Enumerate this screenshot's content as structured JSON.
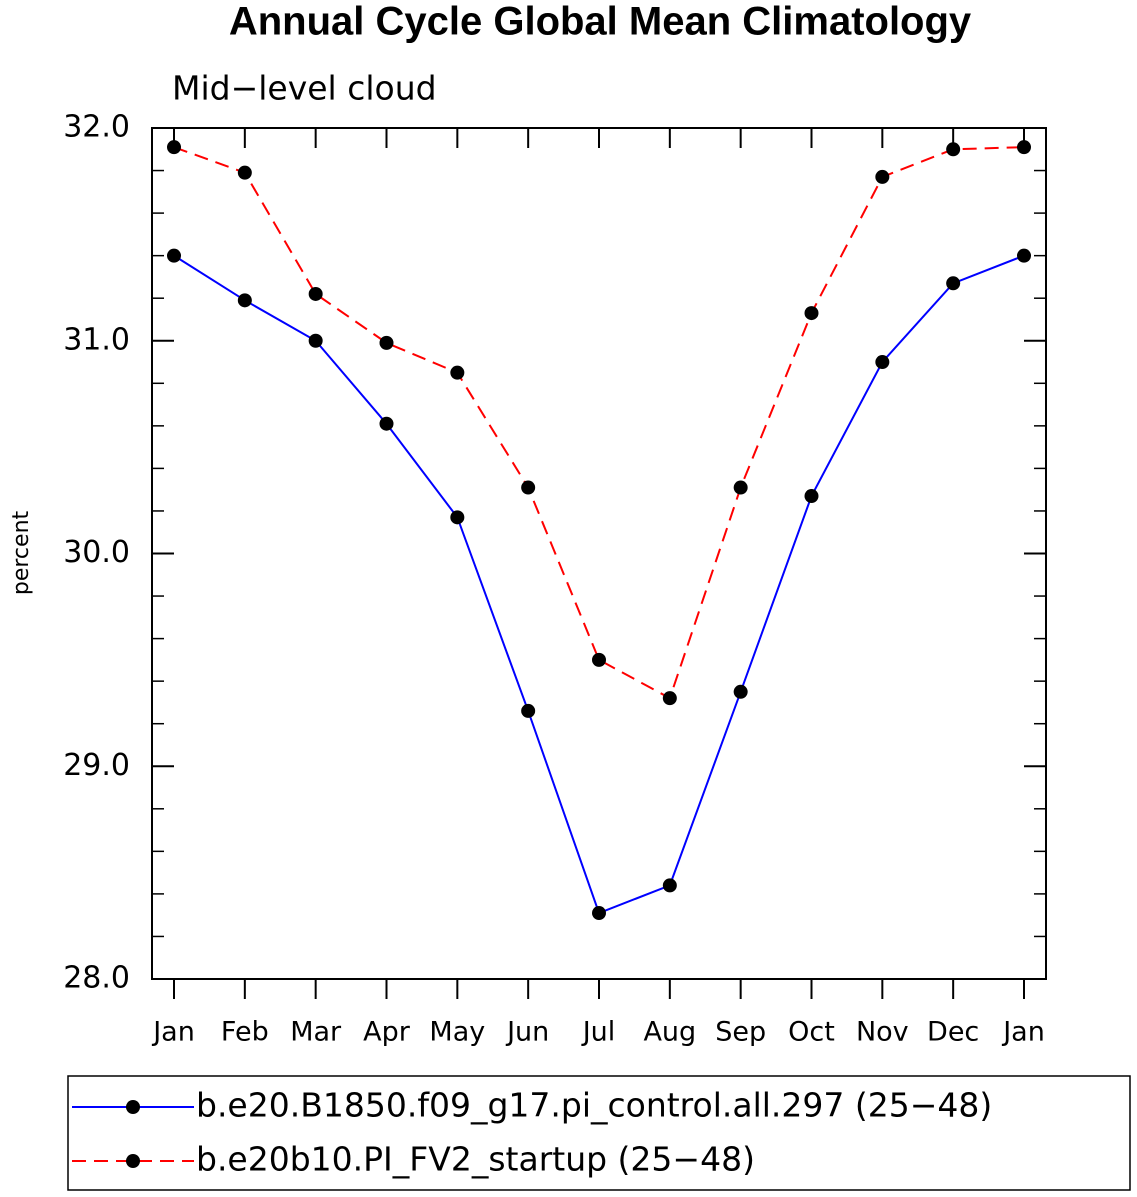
{
  "chart_data": {
    "type": "line",
    "title": "Annual Cycle Global Mean Climatology",
    "subtitle": "Mid−level cloud",
    "ylabel": "percent",
    "categories": [
      "Jan",
      "Feb",
      "Mar",
      "Apr",
      "May",
      "Jun",
      "Jul",
      "Aug",
      "Sep",
      "Oct",
      "Nov",
      "Dec",
      "Jan"
    ],
    "series": [
      {
        "name": "b.e20.B1850.f09_g17.pi_control.all.297 (25−48)",
        "color": "#0000ff",
        "linestyle": "solid",
        "values": [
          31.4,
          31.19,
          31.0,
          30.61,
          30.17,
          29.26,
          28.31,
          28.44,
          29.35,
          30.27,
          30.9,
          31.27,
          31.4
        ]
      },
      {
        "name": "b.e20b10.PI_FV2_startup (25−48)",
        "color": "#ff0000",
        "linestyle": "dashed",
        "values": [
          31.91,
          31.79,
          31.22,
          30.99,
          30.85,
          30.31,
          29.5,
          29.32,
          30.31,
          31.13,
          31.77,
          31.9,
          31.91
        ]
      }
    ],
    "marker_color": "#000000",
    "ylim": [
      28,
      32
    ],
    "yticks": [
      {
        "value": 28,
        "label": "28.0"
      },
      {
        "value": 29,
        "label": "29.0"
      },
      {
        "value": 30,
        "label": "30.0"
      },
      {
        "value": 31,
        "label": "31.0"
      },
      {
        "value": 32,
        "label": "32.0"
      }
    ],
    "yminorticks": [
      28.2,
      28.4,
      28.6,
      28.8,
      29.2,
      29.4,
      29.6,
      29.8,
      30.2,
      30.4,
      30.6,
      30.8,
      31.2,
      31.4,
      31.6,
      31.8
    ]
  }
}
